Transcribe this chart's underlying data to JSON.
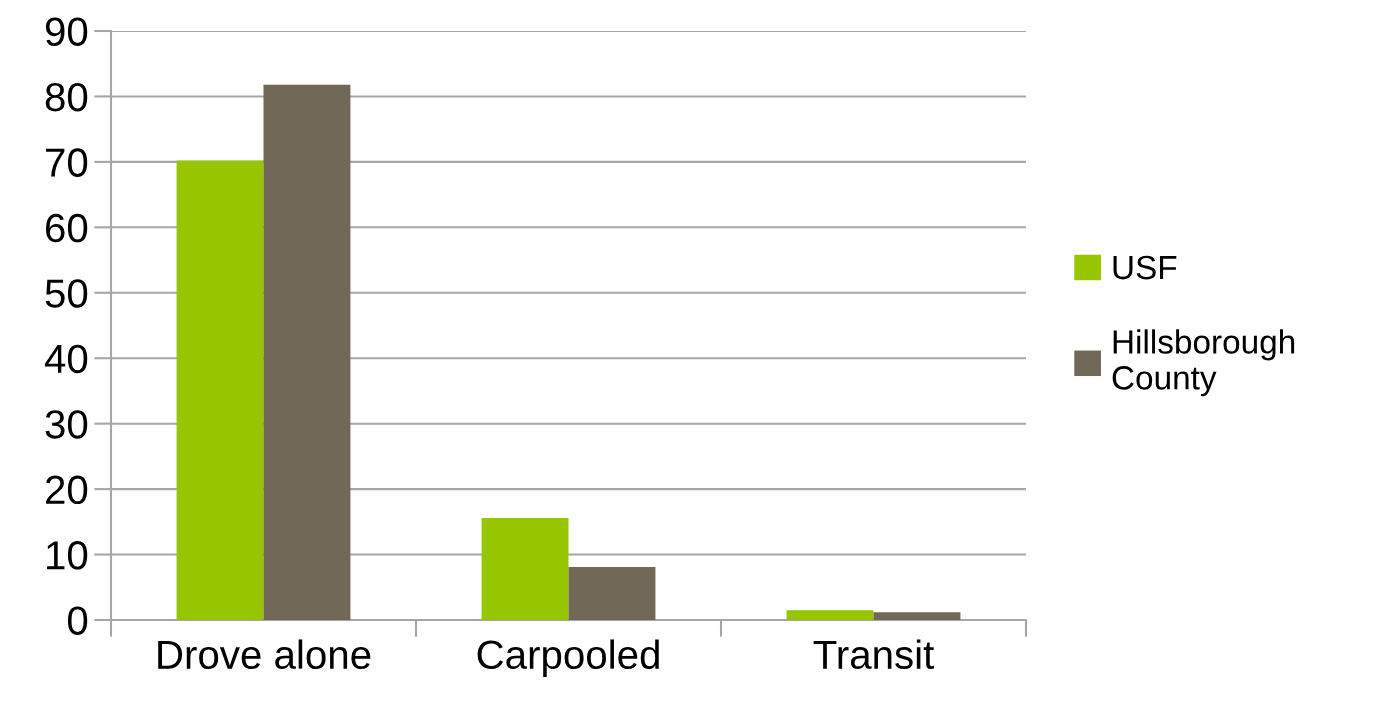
{
  "chart_data": {
    "type": "bar",
    "categories": [
      "Drove alone",
      "Carpooled",
      "Transit"
    ],
    "series": [
      {
        "name": "USF",
        "color": "#95c600",
        "values": [
          70.2,
          15.6,
          1.5
        ]
      },
      {
        "name": "Hillsborough County",
        "color": "#716858",
        "values": [
          81.8,
          8.1,
          1.2
        ]
      }
    ],
    "ylim": [
      0,
      90
    ],
    "yticks": [
      0,
      10,
      20,
      30,
      40,
      50,
      60,
      70,
      80,
      90
    ],
    "grid": "y",
    "legend": "right"
  }
}
